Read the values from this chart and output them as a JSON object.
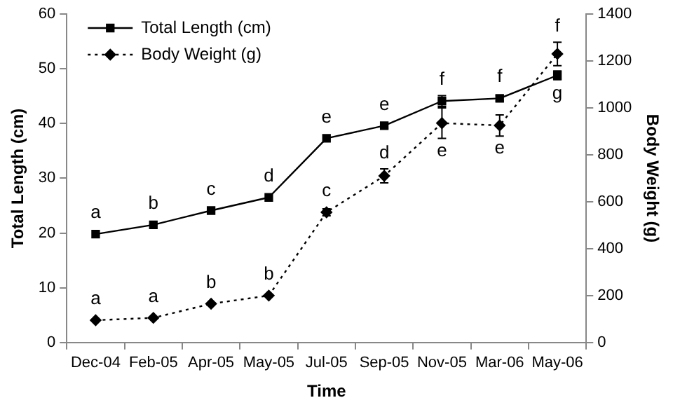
{
  "chart_data": {
    "type": "line",
    "xlabel": "Time",
    "ylabel": "Total Length (cm)",
    "y2label": "Body Weight (g)",
    "categories": [
      "Dec-04",
      "Feb-05",
      "Apr-05",
      "May-05",
      "Jul-05",
      "Sep-05",
      "Nov-05",
      "Mar-06",
      "May-06"
    ],
    "series": [
      {
        "name": "Total Length (cm)",
        "color": "#000000",
        "marker": "square",
        "line_style": "solid",
        "values": [
          19.8,
          21.5,
          24.1,
          26.5,
          37.3,
          39.6,
          44.1,
          44.6,
          48.8
        ],
        "errors": [
          null,
          null,
          null,
          null,
          null,
          0.5,
          1,
          0.5,
          0.8
        ]
      },
      {
        "name": "Body Weight (g)",
        "color": "#000000",
        "marker": "diamond",
        "line_style": "dotted",
        "axis": "y2",
        "values": [
          95,
          105,
          165,
          200,
          555,
          710,
          935,
          925,
          1230
        ],
        "errors": [
          null,
          null,
          null,
          null,
          15,
          30,
          65,
          45,
          50
        ]
      }
    ],
    "ylim": [
      0,
      60
    ],
    "yticks": [
      0,
      10,
      20,
      30,
      40,
      50,
      60
    ],
    "y2lim": [
      0,
      1400
    ],
    "y2ticks": [
      0,
      200,
      400,
      600,
      800,
      1000,
      1200,
      1400
    ],
    "grid": false,
    "legend": "top left",
    "annotations": [
      {
        "text": "a",
        "x": "Dec-04",
        "y": 19.8
      },
      {
        "text": "b",
        "x": "Feb-05",
        "y": 21.5
      },
      {
        "text": "c",
        "x": "Apr-05",
        "y": 24.1
      },
      {
        "text": "d",
        "x": "May-05",
        "y": 26.5
      },
      {
        "text": "e",
        "x": "Jul-05",
        "y": 37.3
      },
      {
        "text": "e",
        "x": "Sep-05",
        "y": 39.6
      },
      {
        "text": "f",
        "x": "Nov-05",
        "y": 44.1
      },
      {
        "text": "f",
        "x": "Mar-06",
        "y": 44.6
      },
      {
        "text": "g",
        "x": "May-06",
        "y": 48.8
      },
      {
        "text": "a",
        "x": "Dec-04",
        "y": 4.1
      },
      {
        "text": "a",
        "x": "Feb-05",
        "y": 4.5
      },
      {
        "text": "b",
        "x": "Apr-05",
        "y": 7.1
      },
      {
        "text": "b",
        "x": "May-05",
        "y": 8.6
      },
      {
        "text": "c",
        "x": "Jul-05",
        "y": 23.8
      },
      {
        "text": "d",
        "x": "Sep-05",
        "y": 30.4
      },
      {
        "text": "e",
        "x": "Nov-05",
        "y": 40.1
      },
      {
        "text": "e",
        "x": "Mar-06",
        "y": 39.6
      },
      {
        "text": "f",
        "x": "May-06",
        "y": 52.7
      }
    ]
  }
}
